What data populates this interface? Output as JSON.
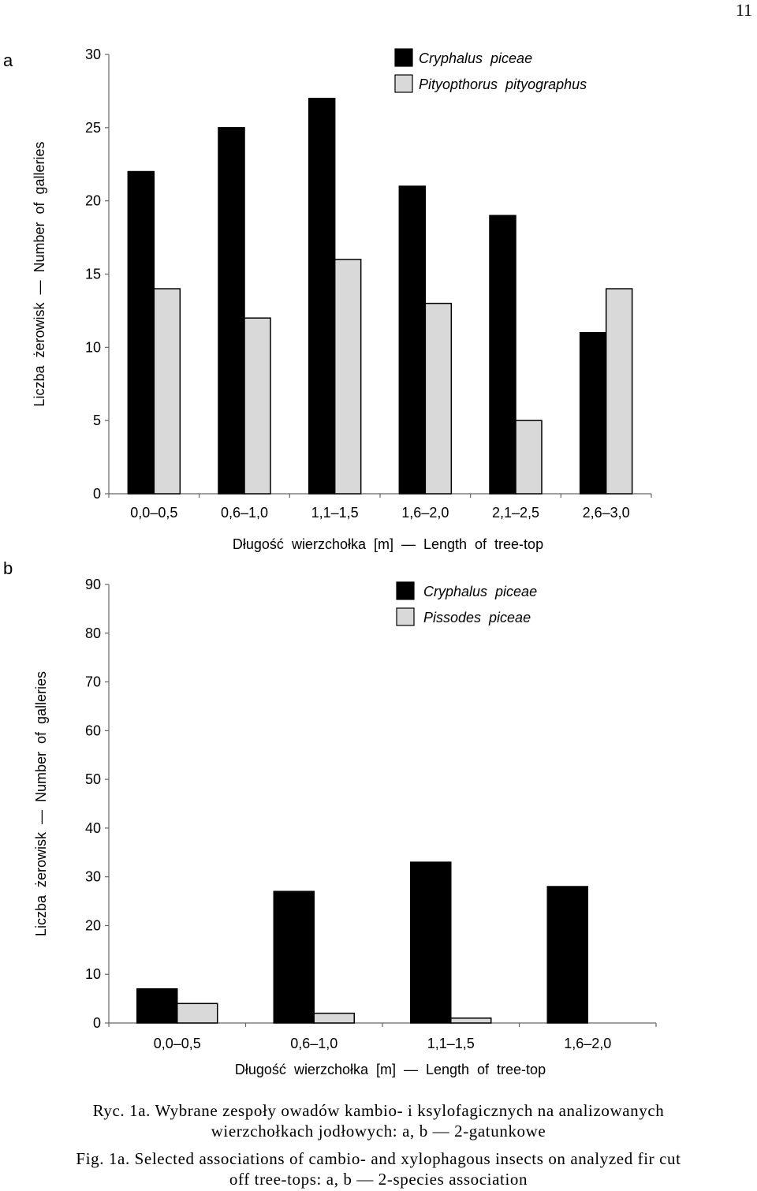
{
  "page_number": "11",
  "chart_data": [
    {
      "panel": "a",
      "type": "bar",
      "categories": [
        "0,0–0,5",
        "0,6–1,0",
        "1,1–1,5",
        "1,6–2,0",
        "2,1–2,5",
        "2,6–3,0"
      ],
      "series": [
        {
          "name": "Cryphalus  piceae",
          "values": [
            22,
            25,
            27,
            21,
            19,
            11
          ],
          "color": "#000000"
        },
        {
          "name": "Pityopthorus  pityographus",
          "values": [
            14,
            12,
            16,
            13,
            5,
            14
          ],
          "color": "#d9d9d9"
        }
      ],
      "ylim": [
        0,
        30
      ],
      "yticks": [
        "0",
        "5",
        "10",
        "15",
        "20",
        "25",
        "30"
      ],
      "ylabel": "Liczba  żerowisk  —  Number  of  galleries",
      "xlabel": "Długość  wierzchołka  [m]  —  Length  of  tree-top",
      "legend": "top-right",
      "grid": false
    },
    {
      "panel": "b",
      "type": "bar",
      "categories": [
        "0,0–0,5",
        "0,6–1,0",
        "1,1–1,5",
        "1,6–2,0"
      ],
      "series": [
        {
          "name": "Cryphalus  piceae",
          "values": [
            7,
            27,
            33,
            28
          ],
          "color": "#000000"
        },
        {
          "name": "Pissodes  piceae",
          "values": [
            4,
            2,
            1,
            0
          ],
          "color": "#d9d9d9"
        }
      ],
      "ylim": [
        0,
        90
      ],
      "yticks": [
        "0",
        "10",
        "20",
        "30",
        "40",
        "50",
        "60",
        "70",
        "80",
        "90"
      ],
      "ylabel": "Liczba  żerowisk  —  Number  of  galleries",
      "xlabel": "Długość  wierzchołka  [m]  —  Length  of  tree-top",
      "legend": "top-right",
      "grid": false
    }
  ],
  "captions": {
    "polish_line1": "Ryc.  1a.  Wybrane  zespoły  owadów  kambio-  i  ksylofagicznych  na  analizowanych",
    "polish_line2": "wierzchołkach  jodłowych:  a,  b  —  2-gatunkowe",
    "english_line1": "Fig.  1a.  Selected  associations  of  cambio-  and  xylophagous  insects  on  analyzed  fir  cut",
    "english_line2": "off  tree-tops:  a,  b  —  2-species  association"
  }
}
